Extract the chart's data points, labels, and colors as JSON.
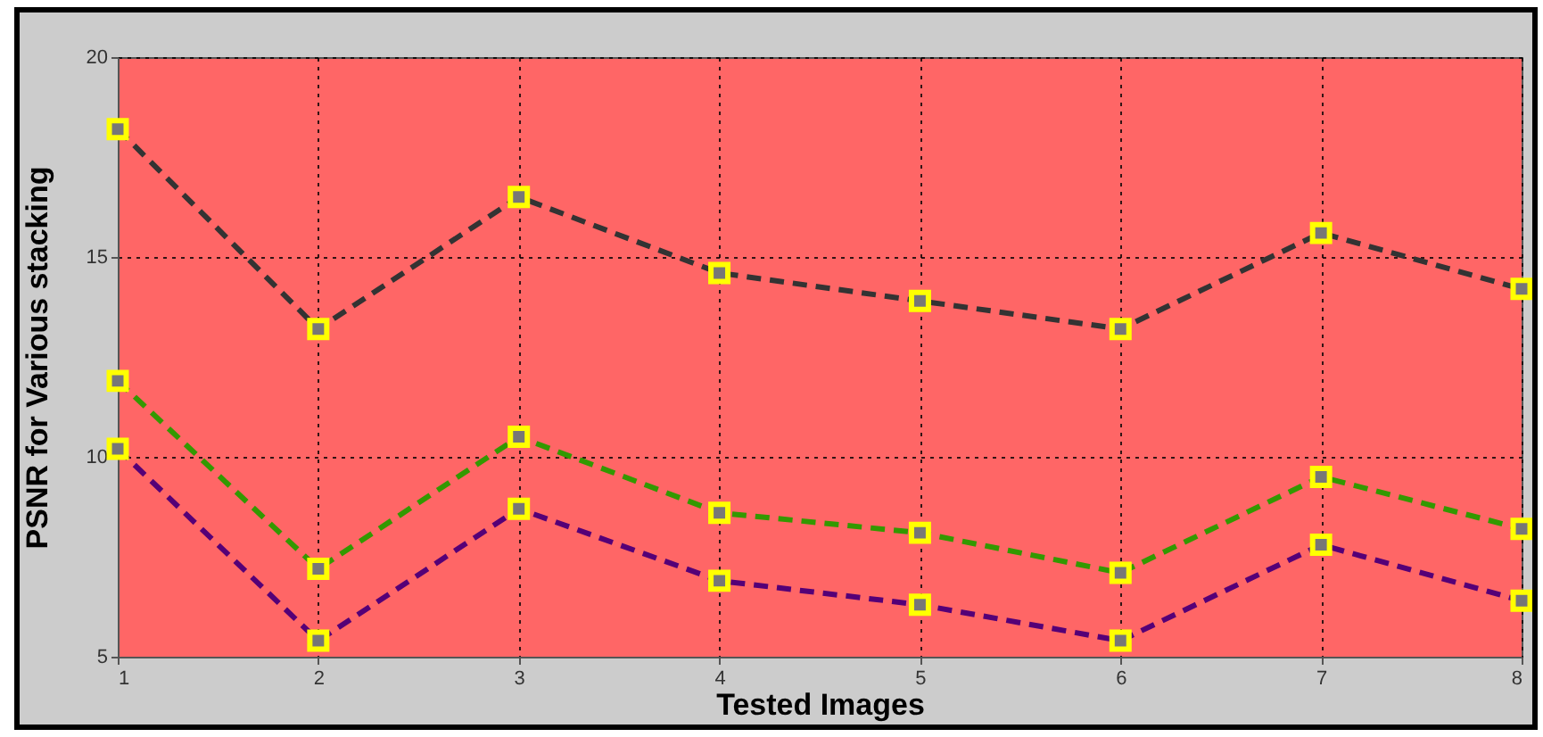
{
  "chart_data": {
    "type": "line",
    "xlabel": "Tested Images",
    "ylabel": "PSNR for Various stacking",
    "x": [
      1,
      2,
      3,
      4,
      5,
      6,
      7,
      8
    ],
    "series": [
      {
        "color": "#333333",
        "values": [
          18.2,
          13.2,
          16.5,
          14.6,
          13.9,
          13.2,
          15.6,
          14.2
        ]
      },
      {
        "color": "#339900",
        "values": [
          11.9,
          7.2,
          10.5,
          8.6,
          8.1,
          7.1,
          9.5,
          8.2
        ]
      },
      {
        "color": "#550077",
        "values": [
          10.2,
          5.4,
          8.7,
          6.9,
          6.3,
          5.4,
          7.8,
          6.4
        ]
      }
    ],
    "xlim": [
      1,
      8
    ],
    "xticks": [
      1,
      2,
      3,
      4,
      5,
      6,
      7,
      8
    ],
    "ylim": [
      5,
      20
    ],
    "yticks": [
      5,
      10,
      15,
      20
    ],
    "grid": true,
    "marker": "square",
    "line_style": "dashed",
    "legend": false
  }
}
